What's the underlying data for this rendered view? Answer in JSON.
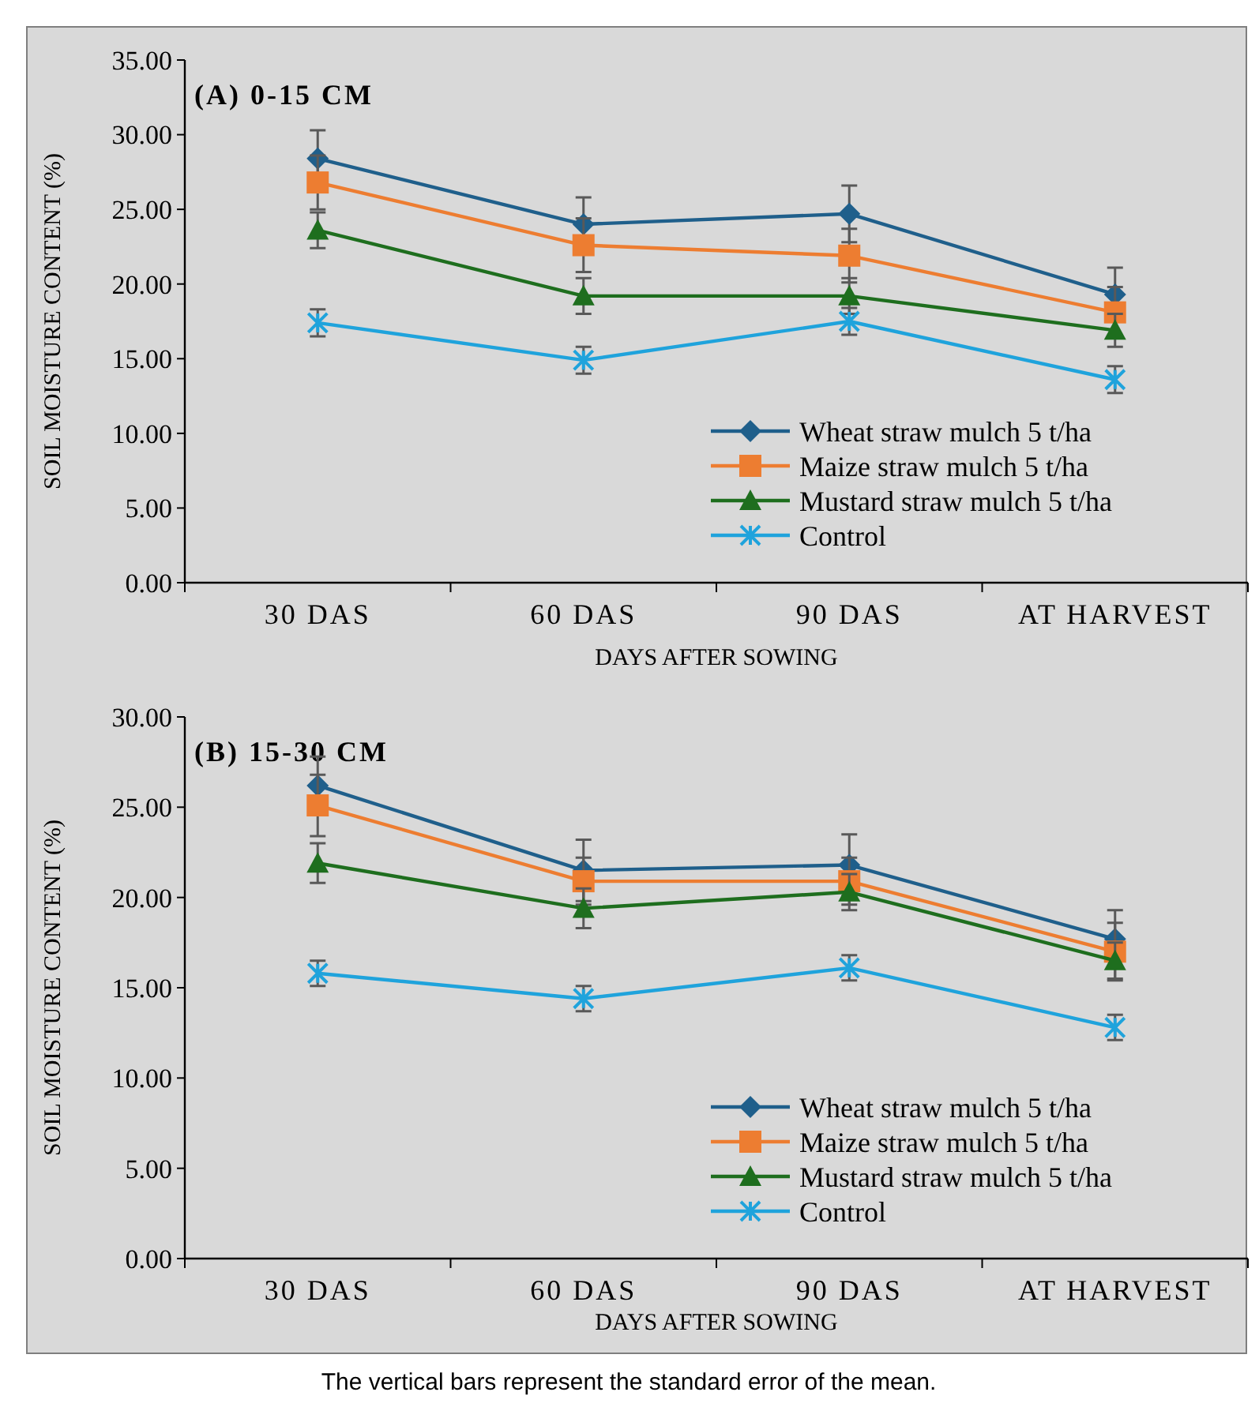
{
  "chart_data": [
    {
      "type": "line",
      "title": "(A) 0-15 CM",
      "xlabel": "DAYS AFTER SOWING",
      "ylabel": "SOIL MOISTURE CONTENT (%)",
      "categories": [
        "30 DAS",
        "60 DAS",
        "90 DAS",
        "AT HARVEST"
      ],
      "ylim": [
        0,
        35
      ],
      "yticks": [
        {
          "value": 0,
          "label": "0.00"
        },
        {
          "value": 5,
          "label": "5.00"
        },
        {
          "value": 10,
          "label": "10.00"
        },
        {
          "value": 15,
          "label": "15.00"
        },
        {
          "value": 20,
          "label": "20.00"
        },
        {
          "value": 25,
          "label": "25.00"
        },
        {
          "value": 30,
          "label": "30.00"
        },
        {
          "value": 35,
          "label": "35.00"
        }
      ],
      "grid": false,
      "legend": "bottom right",
      "series": [
        {
          "name": "Wheat straw mulch 5 t/ha",
          "color": "#1f5f8b",
          "marker": "diamond",
          "values": [
            28.4,
            24.0,
            24.7,
            19.3
          ],
          "errors": [
            1.9,
            1.8,
            1.9,
            1.8
          ]
        },
        {
          "name": "Maize straw mulch 5 t/ha",
          "color": "#ed7d31",
          "marker": "square",
          "values": [
            26.8,
            22.6,
            21.9,
            18.1
          ],
          "errors": [
            1.8,
            1.8,
            1.8,
            1.7
          ]
        },
        {
          "name": "Mustard straw mulch 5 t/ha",
          "color": "#1e6e1e",
          "marker": "triangle",
          "values": [
            23.6,
            19.2,
            19.2,
            16.9
          ],
          "errors": [
            1.2,
            1.2,
            1.2,
            1.1
          ]
        },
        {
          "name": "Control",
          "color": "#1fa3dc",
          "marker": "cross",
          "values": [
            17.4,
            14.9,
            17.5,
            13.6
          ],
          "errors": [
            0.9,
            0.9,
            0.9,
            0.9
          ]
        }
      ]
    },
    {
      "type": "line",
      "title": "(B) 15-30 CM",
      "xlabel": "DAYS AFTER SOWING",
      "ylabel": "SOIL MOISTURE CONTENT (%)",
      "categories": [
        "30 DAS",
        "60 DAS",
        "90 DAS",
        "AT HARVEST"
      ],
      "ylim": [
        0,
        30
      ],
      "yticks": [
        {
          "value": 0,
          "label": "0.00"
        },
        {
          "value": 5,
          "label": "5.00"
        },
        {
          "value": 10,
          "label": "10.00"
        },
        {
          "value": 15,
          "label": "15.00"
        },
        {
          "value": 20,
          "label": "20.00"
        },
        {
          "value": 25,
          "label": "25.00"
        },
        {
          "value": 30,
          "label": "30.00"
        }
      ],
      "grid": false,
      "legend": "bottom right",
      "annotations": [
        "The vertical bars represent the standard error of the mean."
      ],
      "series": [
        {
          "name": "Wheat straw mulch 5 t/ha",
          "color": "#1f5f8b",
          "marker": "diamond",
          "values": [
            26.2,
            21.5,
            21.8,
            17.7
          ],
          "errors": [
            1.6,
            1.7,
            1.7,
            1.6
          ]
        },
        {
          "name": "Maize straw mulch 5 t/ha",
          "color": "#ed7d31",
          "marker": "square",
          "values": [
            25.1,
            20.9,
            20.9,
            17.0
          ],
          "errors": [
            1.7,
            1.3,
            1.3,
            1.6
          ]
        },
        {
          "name": "Mustard straw mulch 5 t/ha",
          "color": "#1e6e1e",
          "marker": "triangle",
          "values": [
            21.9,
            19.4,
            20.3,
            16.5
          ],
          "errors": [
            1.1,
            1.1,
            1.0,
            1.0
          ]
        },
        {
          "name": "Control",
          "color": "#1fa3dc",
          "marker": "cross",
          "values": [
            15.8,
            14.4,
            16.1,
            12.8
          ],
          "errors": [
            0.7,
            0.7,
            0.7,
            0.7
          ]
        }
      ]
    }
  ]
}
